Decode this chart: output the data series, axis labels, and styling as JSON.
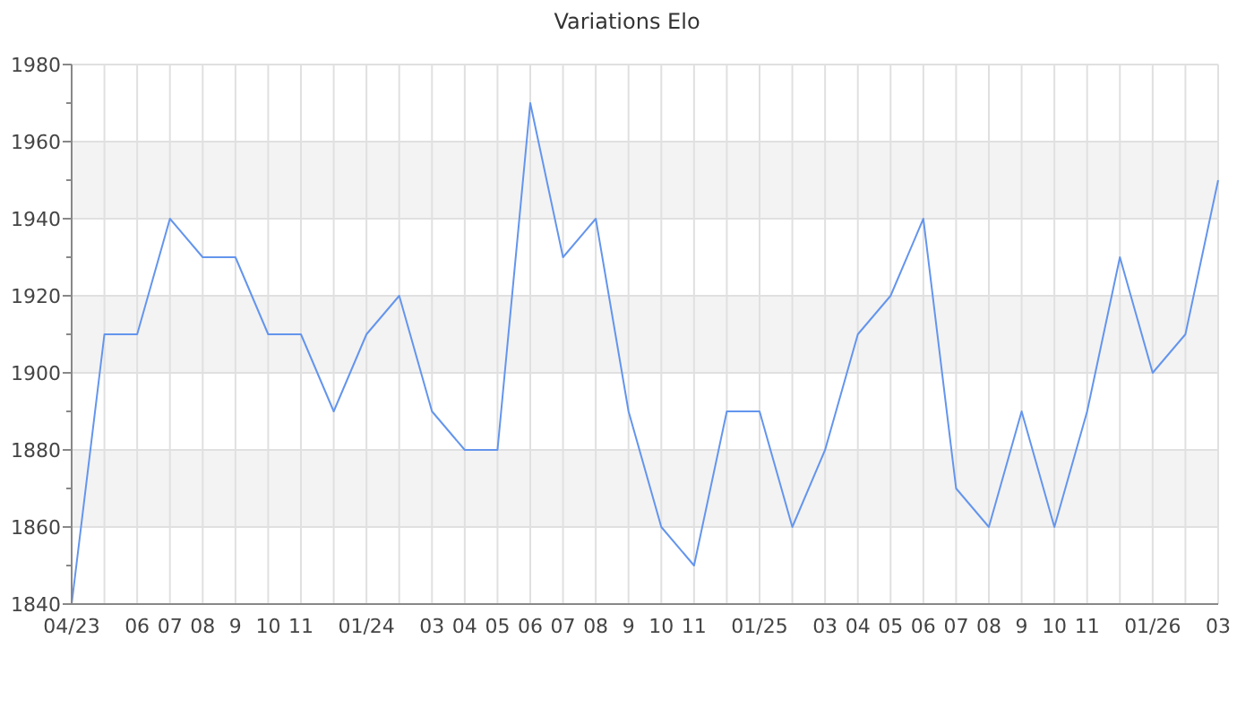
{
  "chart_data": {
    "type": "line",
    "title": "Variations Elo",
    "categories": [
      "04/23",
      null,
      "06",
      "07",
      "08",
      "9",
      "10",
      "11",
      null,
      "01/24",
      null,
      "03",
      "04",
      "05",
      "06",
      "07",
      "08",
      "9",
      "10",
      "11",
      null,
      "01/25",
      null,
      "03",
      "04",
      "05",
      "06",
      "07",
      "08",
      "9",
      "10",
      "11",
      null,
      "01/26",
      null,
      "03"
    ],
    "series": [
      {
        "color": "#6495ed",
        "values": [
          1840,
          1910,
          1910,
          1940,
          1930,
          1930,
          1910,
          1910,
          1890,
          1910,
          1920,
          1890,
          1880,
          1880,
          1970,
          1930,
          1940,
          1890,
          1860,
          1850,
          1890,
          1890,
          1860,
          1880,
          1910,
          1920,
          1940,
          1870,
          1860,
          1890,
          1860,
          1890,
          1930,
          1900,
          1910,
          1950
        ]
      }
    ],
    "ylim": [
      1840,
      1980
    ],
    "yticks": [
      1840,
      1860,
      1880,
      1900,
      1920,
      1940,
      1960,
      1980
    ],
    "grid": true,
    "marker": "none",
    "line_style": "solid"
  }
}
